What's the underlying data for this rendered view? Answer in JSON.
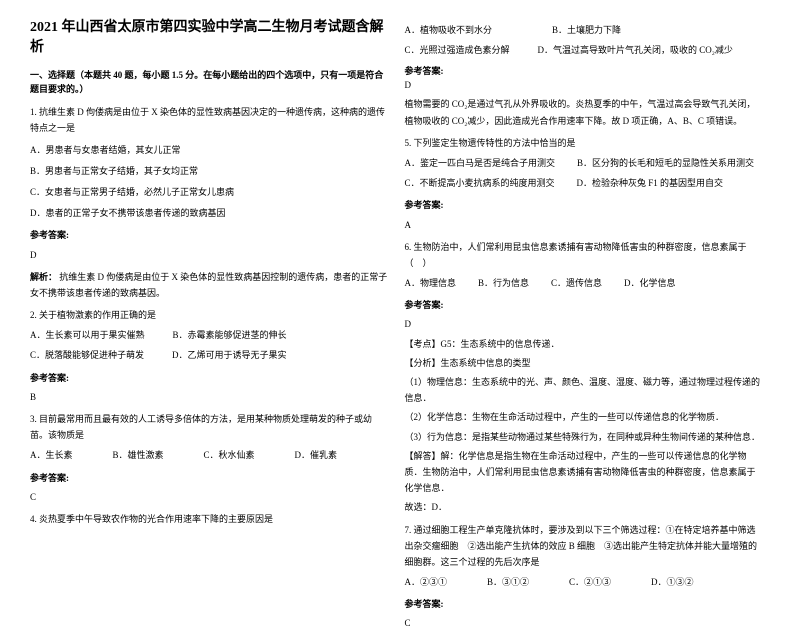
{
  "title": "2021 年山西省太原市第四实验中学高二生物月考试题含解析",
  "section1_head": "一、选择题（本题共 40 题，每小题 1.5 分。在每小题给出的四个选项中，只有一项是符合题目要求的。）",
  "q1": {
    "text": "1. 抗维生素 D 佝偻病是由位于 X 染色体的显性致病基因决定的一种遗传病，这种病的遗传特点之一是",
    "optA": "A．男患者与女患者结婚，其女儿正常",
    "optB": "B．男患者与正常女子结婚，其子女均正常",
    "optC": "C．女患者与正常男子结婚，必然儿子正常女儿患病",
    "optD": "D．患者的正常子女不携带该患者传递的致病基因",
    "ans_label": "参考答案:",
    "ans": "D",
    "explain_label": "解析：",
    "explain": "抗维生素 D 佝偻病是由位于 X 染色体的显性致病基因控制的遗传病，患者的正常子女不携带该患者传递的致病基因。"
  },
  "q2": {
    "text": "2. 关于植物激素的作用正确的是",
    "optA": "A．生长素可以用于果实催熟",
    "optB": "B．赤霉素能够促进茎的伸长",
    "optC": "C．脱落酸能够促进种子萌发",
    "optD": "D．乙烯可用于诱导无子果实",
    "ans_label": "参考答案:",
    "ans": "B"
  },
  "q3": {
    "text": "3. 目前最常用而且最有效的人工诱导多倍体的方法，是用某种物质处理萌发的种子或幼苗。该物质是",
    "optA": "A．生长素",
    "optB": "B．雄性激素",
    "optC": "C．秋水仙素",
    "optD": "D．催乳素",
    "ans_label": "参考答案:",
    "ans": "C"
  },
  "q4": {
    "text": "4. 炎热夏季中午导致农作物的光合作用速率下降的主要原因是",
    "optA": "A．植物吸收不到水分",
    "optB": "B．土壤肥力下降",
    "optC": "C．光照过强造成色素分解",
    "optD": "D．气温过高导致叶片气孔关闭，吸收的 CO₂减少",
    "ans_label": "参考答案:",
    "ans": "D",
    "explain": "植物需要的 CO₂是通过气孔从外界吸收的。炎热夏季的中午，气温过高会导致气孔关闭，植物吸收的 CO₂减少，因此造成光合作用速率下降。故 D 项正确，A、B、C 项错误。"
  },
  "q5": {
    "text": "5. 下列鉴定生物遗传特性的方法中恰当的是",
    "optA": "A．鉴定一匹白马是否是纯合子用测交",
    "optB": "B．区分狗的长毛和短毛的显隐性关系用测交",
    "optC": "C．不断提高小麦抗病系的纯度用测交",
    "optD": "D．检验杂种灰兔 F1 的基因型用自交",
    "ans_label": "参考答案:",
    "ans": "A"
  },
  "q6": {
    "text": "6. 生物防治中，人们常利用昆虫信息素诱捕有害动物降低害虫的种群密度，信息素属于（　）",
    "optA": "A．物理信息",
    "optB": "B．行为信息",
    "optC": "C．遗传信息",
    "optD": "D．化学信息",
    "ans_label": "参考答案:",
    "ans": "D",
    "kp": "【考点】G5：生态系统中的信息传递．",
    "fx": "【分析】生态系统中信息的类型",
    "fx1": "（1）物理信息：生态系统中的光、声、颜色、温度、湿度、磁力等，通过物理过程传递的信息．",
    "fx2": "（2）化学信息：生物在生命活动过程中，产生的一些可以传递信息的化学物质．",
    "fx3": "（3）行为信息：是指某些动物通过某些特殊行为，在同种或异种生物间传递的某种信息．",
    "jd": "【解答】解：化学信息是指生物在生命活动过程中，产生的一些可以传递信息的化学物质．生物防治中，人们常利用昆虫信息素诱捕有害动物降低害虫的种群密度，信息素属于化学信息．",
    "sel": "故选：D．"
  },
  "q7": {
    "text": "7. 通过细胞工程生产单克隆抗体时，要涉及到以下三个筛选过程：①在特定培养基中筛选出杂交瘤细胞　②选出能产生抗体的效应 B 细胞　③选出能产生特定抗体并能大量增殖的细胞群。这三个过程的先后次序是",
    "optA": "A．②③①",
    "optB": "B．③①②",
    "optC": "C．②①③",
    "optD": "D．①③②",
    "ans_label": "参考答案:",
    "ans": "C"
  }
}
